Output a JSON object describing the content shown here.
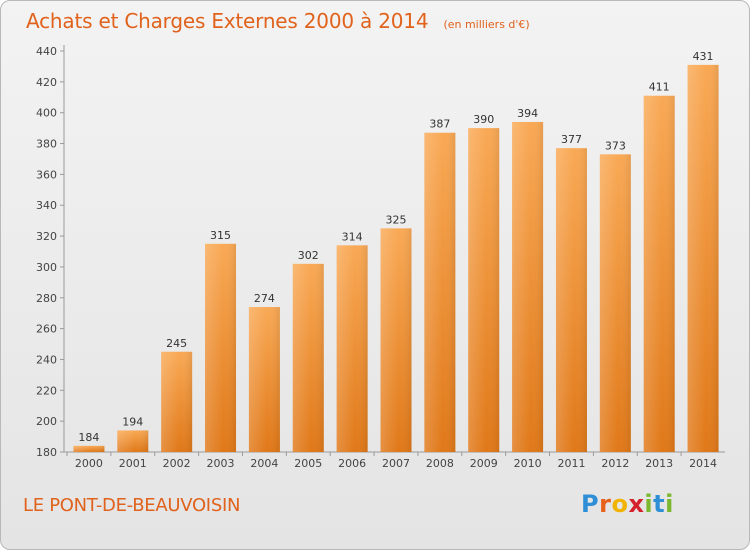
{
  "title": "Achats et Charges Externes 2000 à 2014",
  "unit": "(en milliers d'€)",
  "commune": "LE PONT-DE-BEAUVOISIN",
  "logo": {
    "letters": [
      "P",
      "r",
      "o",
      "x",
      "i",
      "t",
      "i"
    ],
    "colors": [
      "#2e8fd6",
      "#e8611a",
      "#f0b400",
      "#d41f2c",
      "#7cb82f",
      "#2e8fd6",
      "#7cb82f"
    ]
  },
  "chart_data": {
    "type": "bar",
    "categories": [
      "2000",
      "2001",
      "2002",
      "2003",
      "2004",
      "2005",
      "2006",
      "2007",
      "2008",
      "2009",
      "2010",
      "2011",
      "2012",
      "2013",
      "2014"
    ],
    "values": [
      184,
      194,
      245,
      315,
      274,
      302,
      314,
      325,
      387,
      390,
      394,
      377,
      373,
      411,
      431
    ],
    "ylim": [
      180,
      440
    ],
    "yticks": [
      180,
      200,
      220,
      240,
      260,
      280,
      300,
      320,
      340,
      360,
      380,
      400,
      420,
      440
    ],
    "bar_color": "#f08a30",
    "grid": false
  }
}
